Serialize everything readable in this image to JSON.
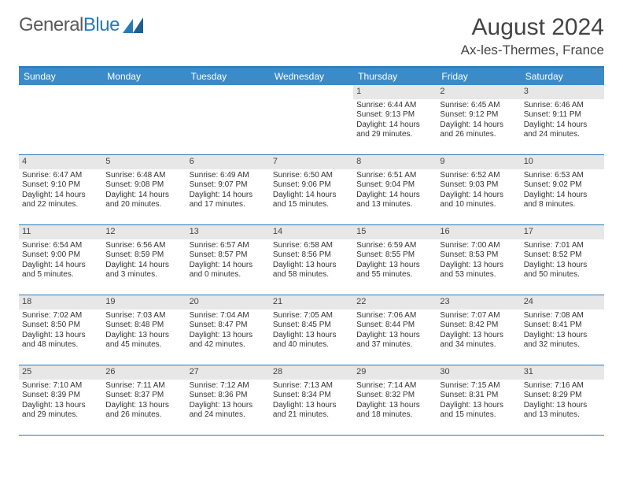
{
  "logo": {
    "text1": "General",
    "text2": "Blue"
  },
  "title": "August 2024",
  "location": "Ax-les-Thermes, France",
  "colors": {
    "header_bg": "#3b8bc9",
    "border": "#2a7ab8",
    "daynum_bg": "#e7e7e7",
    "text": "#333333"
  },
  "day_names": [
    "Sunday",
    "Monday",
    "Tuesday",
    "Wednesday",
    "Thursday",
    "Friday",
    "Saturday"
  ],
  "weeks": [
    [
      {
        "empty": true
      },
      {
        "empty": true
      },
      {
        "empty": true
      },
      {
        "empty": true
      },
      {
        "n": "1",
        "sr": "Sunrise: 6:44 AM",
        "ss": "Sunset: 9:13 PM",
        "d1": "Daylight: 14 hours",
        "d2": "and 29 minutes."
      },
      {
        "n": "2",
        "sr": "Sunrise: 6:45 AM",
        "ss": "Sunset: 9:12 PM",
        "d1": "Daylight: 14 hours",
        "d2": "and 26 minutes."
      },
      {
        "n": "3",
        "sr": "Sunrise: 6:46 AM",
        "ss": "Sunset: 9:11 PM",
        "d1": "Daylight: 14 hours",
        "d2": "and 24 minutes."
      }
    ],
    [
      {
        "n": "4",
        "sr": "Sunrise: 6:47 AM",
        "ss": "Sunset: 9:10 PM",
        "d1": "Daylight: 14 hours",
        "d2": "and 22 minutes."
      },
      {
        "n": "5",
        "sr": "Sunrise: 6:48 AM",
        "ss": "Sunset: 9:08 PM",
        "d1": "Daylight: 14 hours",
        "d2": "and 20 minutes."
      },
      {
        "n": "6",
        "sr": "Sunrise: 6:49 AM",
        "ss": "Sunset: 9:07 PM",
        "d1": "Daylight: 14 hours",
        "d2": "and 17 minutes."
      },
      {
        "n": "7",
        "sr": "Sunrise: 6:50 AM",
        "ss": "Sunset: 9:06 PM",
        "d1": "Daylight: 14 hours",
        "d2": "and 15 minutes."
      },
      {
        "n": "8",
        "sr": "Sunrise: 6:51 AM",
        "ss": "Sunset: 9:04 PM",
        "d1": "Daylight: 14 hours",
        "d2": "and 13 minutes."
      },
      {
        "n": "9",
        "sr": "Sunrise: 6:52 AM",
        "ss": "Sunset: 9:03 PM",
        "d1": "Daylight: 14 hours",
        "d2": "and 10 minutes."
      },
      {
        "n": "10",
        "sr": "Sunrise: 6:53 AM",
        "ss": "Sunset: 9:02 PM",
        "d1": "Daylight: 14 hours",
        "d2": "and 8 minutes."
      }
    ],
    [
      {
        "n": "11",
        "sr": "Sunrise: 6:54 AM",
        "ss": "Sunset: 9:00 PM",
        "d1": "Daylight: 14 hours",
        "d2": "and 5 minutes."
      },
      {
        "n": "12",
        "sr": "Sunrise: 6:56 AM",
        "ss": "Sunset: 8:59 PM",
        "d1": "Daylight: 14 hours",
        "d2": "and 3 minutes."
      },
      {
        "n": "13",
        "sr": "Sunrise: 6:57 AM",
        "ss": "Sunset: 8:57 PM",
        "d1": "Daylight: 14 hours",
        "d2": "and 0 minutes."
      },
      {
        "n": "14",
        "sr": "Sunrise: 6:58 AM",
        "ss": "Sunset: 8:56 PM",
        "d1": "Daylight: 13 hours",
        "d2": "and 58 minutes."
      },
      {
        "n": "15",
        "sr": "Sunrise: 6:59 AM",
        "ss": "Sunset: 8:55 PM",
        "d1": "Daylight: 13 hours",
        "d2": "and 55 minutes."
      },
      {
        "n": "16",
        "sr": "Sunrise: 7:00 AM",
        "ss": "Sunset: 8:53 PM",
        "d1": "Daylight: 13 hours",
        "d2": "and 53 minutes."
      },
      {
        "n": "17",
        "sr": "Sunrise: 7:01 AM",
        "ss": "Sunset: 8:52 PM",
        "d1": "Daylight: 13 hours",
        "d2": "and 50 minutes."
      }
    ],
    [
      {
        "n": "18",
        "sr": "Sunrise: 7:02 AM",
        "ss": "Sunset: 8:50 PM",
        "d1": "Daylight: 13 hours",
        "d2": "and 48 minutes."
      },
      {
        "n": "19",
        "sr": "Sunrise: 7:03 AM",
        "ss": "Sunset: 8:48 PM",
        "d1": "Daylight: 13 hours",
        "d2": "and 45 minutes."
      },
      {
        "n": "20",
        "sr": "Sunrise: 7:04 AM",
        "ss": "Sunset: 8:47 PM",
        "d1": "Daylight: 13 hours",
        "d2": "and 42 minutes."
      },
      {
        "n": "21",
        "sr": "Sunrise: 7:05 AM",
        "ss": "Sunset: 8:45 PM",
        "d1": "Daylight: 13 hours",
        "d2": "and 40 minutes."
      },
      {
        "n": "22",
        "sr": "Sunrise: 7:06 AM",
        "ss": "Sunset: 8:44 PM",
        "d1": "Daylight: 13 hours",
        "d2": "and 37 minutes."
      },
      {
        "n": "23",
        "sr": "Sunrise: 7:07 AM",
        "ss": "Sunset: 8:42 PM",
        "d1": "Daylight: 13 hours",
        "d2": "and 34 minutes."
      },
      {
        "n": "24",
        "sr": "Sunrise: 7:08 AM",
        "ss": "Sunset: 8:41 PM",
        "d1": "Daylight: 13 hours",
        "d2": "and 32 minutes."
      }
    ],
    [
      {
        "n": "25",
        "sr": "Sunrise: 7:10 AM",
        "ss": "Sunset: 8:39 PM",
        "d1": "Daylight: 13 hours",
        "d2": "and 29 minutes."
      },
      {
        "n": "26",
        "sr": "Sunrise: 7:11 AM",
        "ss": "Sunset: 8:37 PM",
        "d1": "Daylight: 13 hours",
        "d2": "and 26 minutes."
      },
      {
        "n": "27",
        "sr": "Sunrise: 7:12 AM",
        "ss": "Sunset: 8:36 PM",
        "d1": "Daylight: 13 hours",
        "d2": "and 24 minutes."
      },
      {
        "n": "28",
        "sr": "Sunrise: 7:13 AM",
        "ss": "Sunset: 8:34 PM",
        "d1": "Daylight: 13 hours",
        "d2": "and 21 minutes."
      },
      {
        "n": "29",
        "sr": "Sunrise: 7:14 AM",
        "ss": "Sunset: 8:32 PM",
        "d1": "Daylight: 13 hours",
        "d2": "and 18 minutes."
      },
      {
        "n": "30",
        "sr": "Sunrise: 7:15 AM",
        "ss": "Sunset: 8:31 PM",
        "d1": "Daylight: 13 hours",
        "d2": "and 15 minutes."
      },
      {
        "n": "31",
        "sr": "Sunrise: 7:16 AM",
        "ss": "Sunset: 8:29 PM",
        "d1": "Daylight: 13 hours",
        "d2": "and 13 minutes."
      }
    ]
  ]
}
